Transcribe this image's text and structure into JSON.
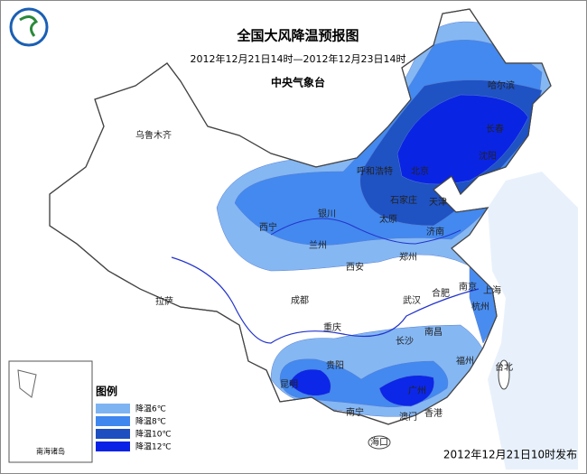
{
  "header": {
    "title": "全国大风降温预报图",
    "time_range": "2012年12月21日14时—2012年12月23日14时",
    "issuer": "中央气象台"
  },
  "cities": [
    "乌鲁木齐",
    "哈尔滨",
    "长春",
    "沈阳",
    "呼和浩特",
    "北京",
    "石家庄",
    "天津",
    "银川",
    "西宁",
    "兰州",
    "太原",
    "济南",
    "郑州",
    "西安",
    "拉萨",
    "成都",
    "合肥",
    "南京",
    "上海",
    "武汉",
    "杭州",
    "重庆",
    "南昌",
    "长沙",
    "贵阳",
    "福州",
    "台北",
    "昆明",
    "广州",
    "南宁",
    "香港",
    "澳门",
    "海口"
  ],
  "legend": {
    "title": "图例",
    "items": [
      {
        "label": "降温6℃",
        "color": "#7eb3f2"
      },
      {
        "label": "降温8℃",
        "color": "#3f86ee"
      },
      {
        "label": "降温10℃",
        "color": "#1d4fc0"
      },
      {
        "label": "降温12℃",
        "color": "#0a22e6"
      }
    ]
  },
  "inset": {
    "label": "南海诸岛"
  },
  "footer": {
    "published": "2012年12月21日10时发布"
  }
}
